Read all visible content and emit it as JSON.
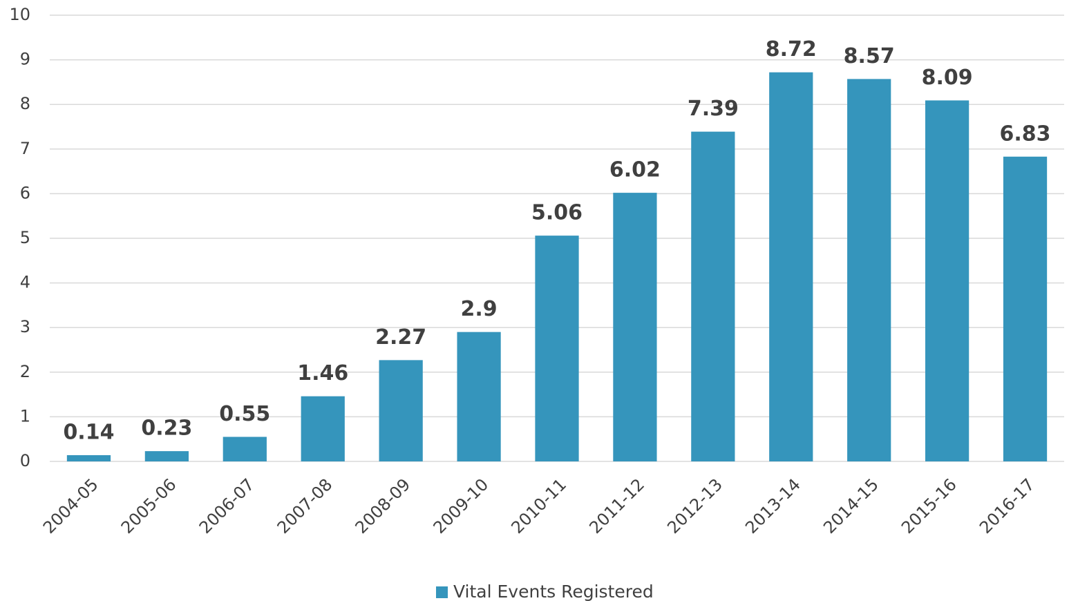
{
  "chart_data": {
    "type": "bar",
    "categories": [
      "2004-05",
      "2005-06",
      "2006-07",
      "2007-08",
      "2008-09",
      "2009-10",
      "2010-11",
      "2011-12",
      "2012-13",
      "2013-14",
      "2014-15",
      "2015-16",
      "2016-17"
    ],
    "series": [
      {
        "name": "Vital Events Registered",
        "color": "#3595bc",
        "values": [
          0.14,
          0.23,
          0.55,
          1.46,
          2.27,
          2.9,
          5.06,
          6.02,
          7.39,
          8.72,
          8.57,
          8.09,
          6.83
        ]
      }
    ],
    "ylim": [
      0,
      10
    ],
    "yticks": [
      0,
      1,
      2,
      3,
      4,
      5,
      6,
      7,
      8,
      9,
      10
    ],
    "grid": true,
    "legend": "bottom"
  }
}
